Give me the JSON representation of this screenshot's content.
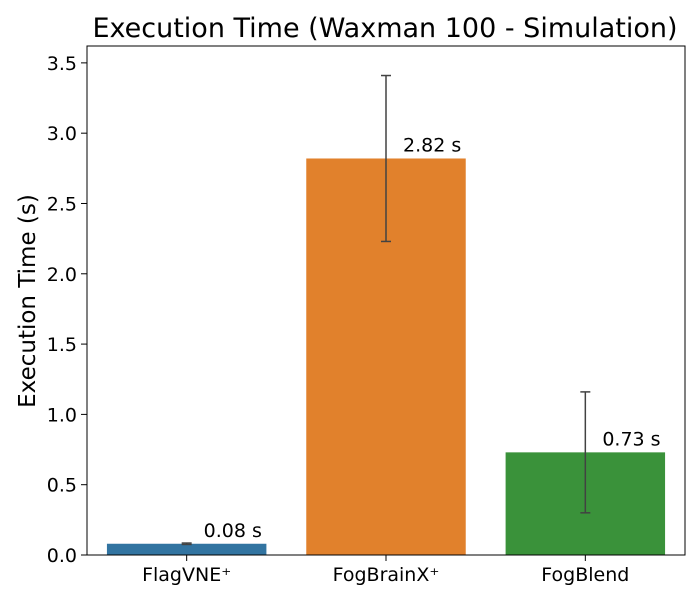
{
  "chart_data": {
    "type": "bar",
    "title": "Execution Time (Waxman 100 - Simulation)",
    "xlabel": "",
    "ylabel": "Execution Time (s)",
    "ylim": [
      0,
      3.62
    ],
    "yticks": [
      0.0,
      0.5,
      1.0,
      1.5,
      2.0,
      2.5,
      3.0,
      3.5
    ],
    "ytick_labels": [
      "0.0",
      "0.5",
      "1.0",
      "1.5",
      "2.0",
      "2.5",
      "3.0",
      "3.5"
    ],
    "categories": [
      "FlagVNE⁺",
      "FogBrainX⁺",
      "FogBlend"
    ],
    "values": [
      0.08,
      2.82,
      0.73
    ],
    "error_low": [
      0.075,
      2.23,
      0.3
    ],
    "error_high": [
      0.085,
      3.41,
      1.16
    ],
    "data_labels": [
      "0.08 s",
      "2.82 s",
      "0.73 s"
    ],
    "colors": [
      "#3274a1",
      "#e1812c",
      "#3a923a"
    ],
    "error_bar_color": "#424242",
    "grid": false,
    "legend": "none"
  }
}
